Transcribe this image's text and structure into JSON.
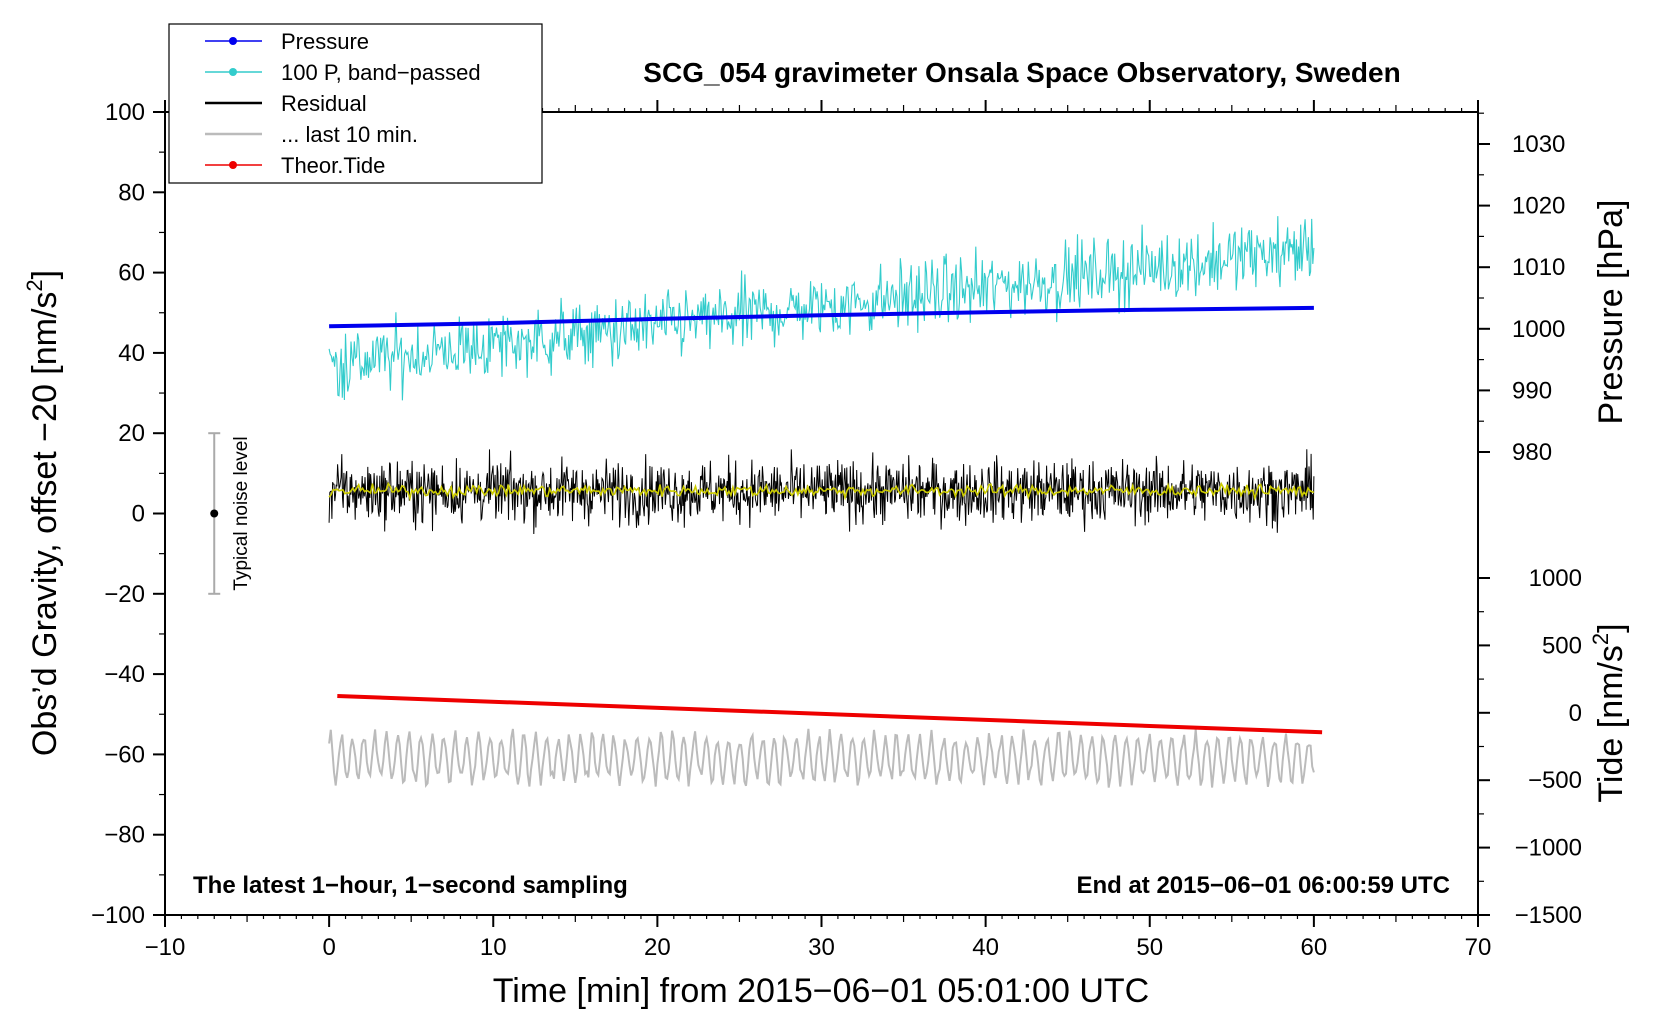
{
  "chart_data": {
    "type": "line",
    "title": "SCG_054 gravimeter Onsala Space Observatory, Sweden",
    "xlabel": "Time [min] from 2015−06−01 05:01:00 UTC",
    "ylabel": "Obs’d Gravity, offset −20 [nm/s",
    "ylabel_sup": "2",
    "ylabel_end": "]",
    "y2label": "Pressure [hPa]",
    "y3label": "Tide [nm/s",
    "y3label_sup": "2",
    "y3label_end": "]",
    "xlim": [
      -10,
      70
    ],
    "ylim": [
      -100,
      100
    ],
    "y2lim": [
      1035,
      970
    ],
    "y3lim": [
      -1500,
      1000
    ],
    "xticks": [
      -10,
      0,
      10,
      20,
      30,
      40,
      50,
      60,
      70
    ],
    "xtick_labels": [
      "−10",
      "0",
      "10",
      "20",
      "30",
      "40",
      "50",
      "60",
      "70"
    ],
    "yticks": [
      100,
      80,
      60,
      40,
      20,
      0,
      -20,
      -40,
      -60,
      -80,
      -100
    ],
    "ytick_labels": [
      "100",
      "80",
      "60",
      "40",
      "20",
      "0",
      "−20",
      "−40",
      "−60",
      "−80",
      "−100"
    ],
    "y2ticks": [
      1030,
      1020,
      1010,
      1000,
      990,
      980
    ],
    "y2tick_labels": [
      "1030",
      "1020",
      "1010",
      "1000",
      "990",
      "980"
    ],
    "y3ticks": [
      1000,
      500,
      0,
      -500,
      -1000,
      -1500
    ],
    "y3tick_labels": [
      "1000",
      "500",
      "0",
      "−500",
      "−1000",
      "−1500"
    ],
    "legend": [
      {
        "label": "Pressure",
        "color": "#0000ee",
        "marker": true
      },
      {
        "label": "100 P, band−passed",
        "color": "#33cccc",
        "marker": true
      },
      {
        "label": "Residual",
        "color": "#000000",
        "marker": false
      },
      {
        "label": "... last 10 min.",
        "color": "#bbbbbb",
        "marker": false
      },
      {
        "label": "Theor.Tide",
        "color": "#ee0000",
        "marker": true
      }
    ],
    "series": [
      {
        "name": "Pressure",
        "axis": "pressure",
        "color": "#0000ee",
        "x": [
          0,
          10,
          20,
          30,
          40,
          50,
          60
        ],
        "values": [
          1000.4,
          1000.9,
          1001.6,
          1002.2,
          1002.7,
          1003.1,
          1003.4
        ]
      },
      {
        "name": "100 P, band−passed",
        "axis": "gravity",
        "color": "#33cccc",
        "x_range": [
          0,
          60
        ],
        "trend": [
          37,
          66
        ],
        "noise_amplitude": 7
      },
      {
        "name": "Residual",
        "axis": "gravity",
        "color": "#000000",
        "x_range": [
          0,
          60
        ],
        "mean": 5.5,
        "noise_amplitude": 7
      },
      {
        "name": "Residual smoothed",
        "axis": "gravity",
        "color": "#cccc00",
        "x_range": [
          0,
          60
        ],
        "mean": 5.7,
        "noise_amplitude": 1.2
      },
      {
        "name": "... last 10 min.",
        "axis": "gravity",
        "color": "#bbbbbb",
        "x_range": [
          0,
          60
        ],
        "mean": -61,
        "noise_amplitude": 6
      },
      {
        "name": "Theor.Tide",
        "axis": "tide",
        "color": "#ee0000",
        "x": [
          0.5,
          60.5
        ],
        "values": [
          125,
          -145
        ]
      }
    ],
    "noise_bar": {
      "label": "Typical noise level",
      "x": -7,
      "y": 0,
      "low": -20,
      "high": 20
    },
    "annotations": {
      "bottom_left": "The latest 1−hour, 1−second sampling",
      "bottom_right": "End at 2015−06−01 06:00:59 UTC"
    }
  }
}
